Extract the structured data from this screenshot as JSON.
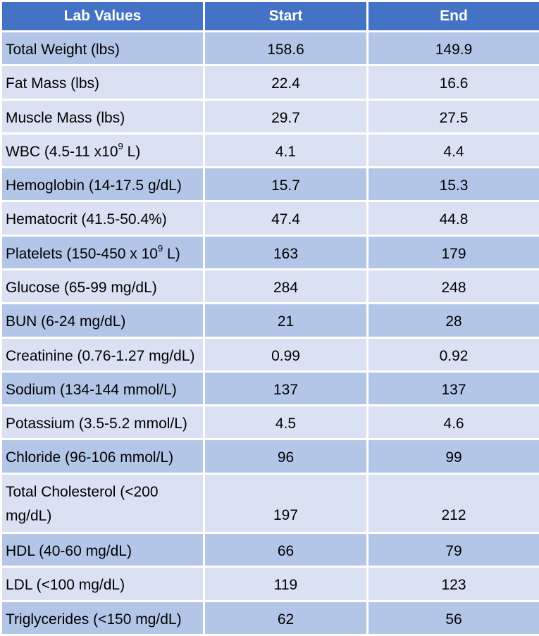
{
  "headers": [
    "Lab Values",
    "Start",
    "End"
  ],
  "rows": [
    {
      "label": "Total Weight (lbs)",
      "start": "158.6",
      "end": "149.9"
    },
    {
      "label": "Fat Mass (lbs)",
      "start": "22.4",
      "end": "16.6"
    },
    {
      "label": "Muscle Mass (lbs)",
      "start": "29.7",
      "end": "27.5"
    },
    {
      "label_pre": "WBC (4.5-11 x10",
      "label_sup": "9",
      "label_post": " L)",
      "start": "4.1",
      "end": "4.4"
    },
    {
      "label": "Hemoglobin (14-17.5 g/dL)",
      "start": "15.7",
      "end": "15.3"
    },
    {
      "label": "Hematocrit (41.5-50.4%)",
      "start": "47.4",
      "end": "44.8"
    },
    {
      "label_pre": "Platelets (150-450 x 10",
      "label_sup": "9",
      "label_post": " L)",
      "start": "163",
      "end": "179"
    },
    {
      "label": "Glucose (65-99 mg/dL)",
      "start": "284",
      "end": "248"
    },
    {
      "label": "BUN (6-24 mg/dL)",
      "start": "21",
      "end": "28"
    },
    {
      "label": "Creatinine (0.76-1.27 mg/dL)",
      "start": "0.99",
      "end": "0.92"
    },
    {
      "label": "Sodium (134-144 mmol/L)",
      "start": "137",
      "end": "137"
    },
    {
      "label": "Potassium (3.5-5.2 mmol/L)",
      "start": "4.5",
      "end": "4.6"
    },
    {
      "label": "Chloride (96-106 mmol/L)",
      "start": "96",
      "end": "99"
    },
    {
      "label": "Total Cholesterol (<200 mg/dL)",
      "start": "197",
      "end": "212"
    },
    {
      "label": "HDL (40-60 mg/dL)",
      "start": "66",
      "end": "79"
    },
    {
      "label": "LDL (<100 mg/dL)",
      "start": "119",
      "end": "123"
    },
    {
      "label": "Triglycerides (<150 mg/dL)",
      "start": "62",
      "end": "56"
    }
  ],
  "colors": {
    "header": "#4472c4",
    "row_dark": "#b4c6e7",
    "row_light": "#d9e1f2"
  }
}
